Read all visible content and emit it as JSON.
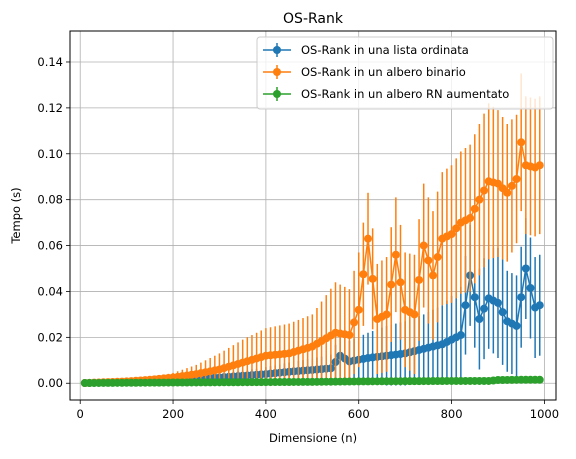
{
  "chart_data": {
    "type": "line",
    "title": "OS-Rank",
    "xlabel": "Dimensione (n)",
    "ylabel": "Tempo (s)",
    "xlim": [
      -22,
      1025
    ],
    "ylim": [
      -0.0073,
      0.1535
    ],
    "xticks": [
      0,
      200,
      400,
      600,
      800,
      1000
    ],
    "yticks": [
      0.0,
      0.02,
      0.04,
      0.06,
      0.08,
      0.1,
      0.12,
      0.14
    ],
    "ytick_labels": [
      "0.00",
      "0.02",
      "0.04",
      "0.06",
      "0.08",
      "0.10",
      "0.12",
      "0.14"
    ],
    "grid": true,
    "legend_position": "top-right",
    "error_bars": true,
    "series": [
      {
        "name": "OS-Rank in una lista ordinata",
        "color": "#1f77b4",
        "x": [
          10,
          100,
          200,
          300,
          400,
          450,
          500,
          540,
          560,
          580,
          620,
          660,
          700,
          740,
          780,
          800,
          820,
          840,
          860,
          880,
          900,
          920,
          940,
          960,
          980,
          990
        ],
        "y": [
          0.0001,
          0.0005,
          0.0012,
          0.0025,
          0.004,
          0.005,
          0.0058,
          0.0065,
          0.012,
          0.0095,
          0.011,
          0.012,
          0.013,
          0.015,
          0.017,
          0.019,
          0.021,
          0.047,
          0.028,
          0.037,
          0.035,
          0.027,
          0.025,
          0.05,
          0.033,
          0.034
        ],
        "err": [
          0.0001,
          0.0004,
          0.0008,
          0.0015,
          0.003,
          0.004,
          0.005,
          0.006,
          0.009,
          0.009,
          0.011,
          0.013,
          0.014,
          0.015,
          0.017,
          0.019,
          0.021,
          0.022,
          0.022,
          0.022,
          0.024,
          0.022,
          0.022,
          0.022,
          0.022,
          0.022
        ]
      },
      {
        "name": "OS-Rank in un albero binario",
        "color": "#ff7f0e",
        "x": [
          10,
          100,
          150,
          200,
          250,
          300,
          350,
          400,
          450,
          500,
          550,
          580,
          600,
          620,
          640,
          660,
          680,
          700,
          720,
          740,
          760,
          780,
          800,
          820,
          840,
          860,
          880,
          900,
          920,
          940,
          950,
          960,
          980,
          990
        ],
        "y": [
          0.0001,
          0.0008,
          0.0015,
          0.0025,
          0.004,
          0.006,
          0.009,
          0.012,
          0.013,
          0.016,
          0.022,
          0.021,
          0.032,
          0.063,
          0.028,
          0.03,
          0.056,
          0.032,
          0.03,
          0.06,
          0.047,
          0.063,
          0.065,
          0.07,
          0.072,
          0.08,
          0.088,
          0.087,
          0.083,
          0.089,
          0.105,
          0.095,
          0.094,
          0.095
        ],
        "err": [
          0.0001,
          0.0006,
          0.001,
          0.002,
          0.004,
          0.007,
          0.01,
          0.012,
          0.013,
          0.014,
          0.022,
          0.02,
          0.025,
          0.02,
          0.024,
          0.025,
          0.025,
          0.025,
          0.026,
          0.027,
          0.028,
          0.029,
          0.03,
          0.031,
          0.032,
          0.033,
          0.034,
          0.032,
          0.03,
          0.028,
          0.03,
          0.03,
          0.03,
          0.03
        ]
      },
      {
        "name": "OS-Rank in un albero RN aumentato",
        "color": "#2ca02c",
        "x": [
          10,
          100,
          200,
          300,
          400,
          500,
          600,
          700,
          800,
          880,
          900,
          950,
          990
        ],
        "y": [
          0.0001,
          0.0002,
          0.0003,
          0.0004,
          0.0005,
          0.0006,
          0.0008,
          0.0009,
          0.001,
          0.001,
          0.0014,
          0.0015,
          0.0015
        ],
        "err": [
          0.0001,
          0.0002,
          0.0002,
          0.0003,
          0.0003,
          0.0004,
          0.0005,
          0.0005,
          0.0006,
          0.0006,
          0.0007,
          0.0007,
          0.0007
        ]
      }
    ]
  }
}
